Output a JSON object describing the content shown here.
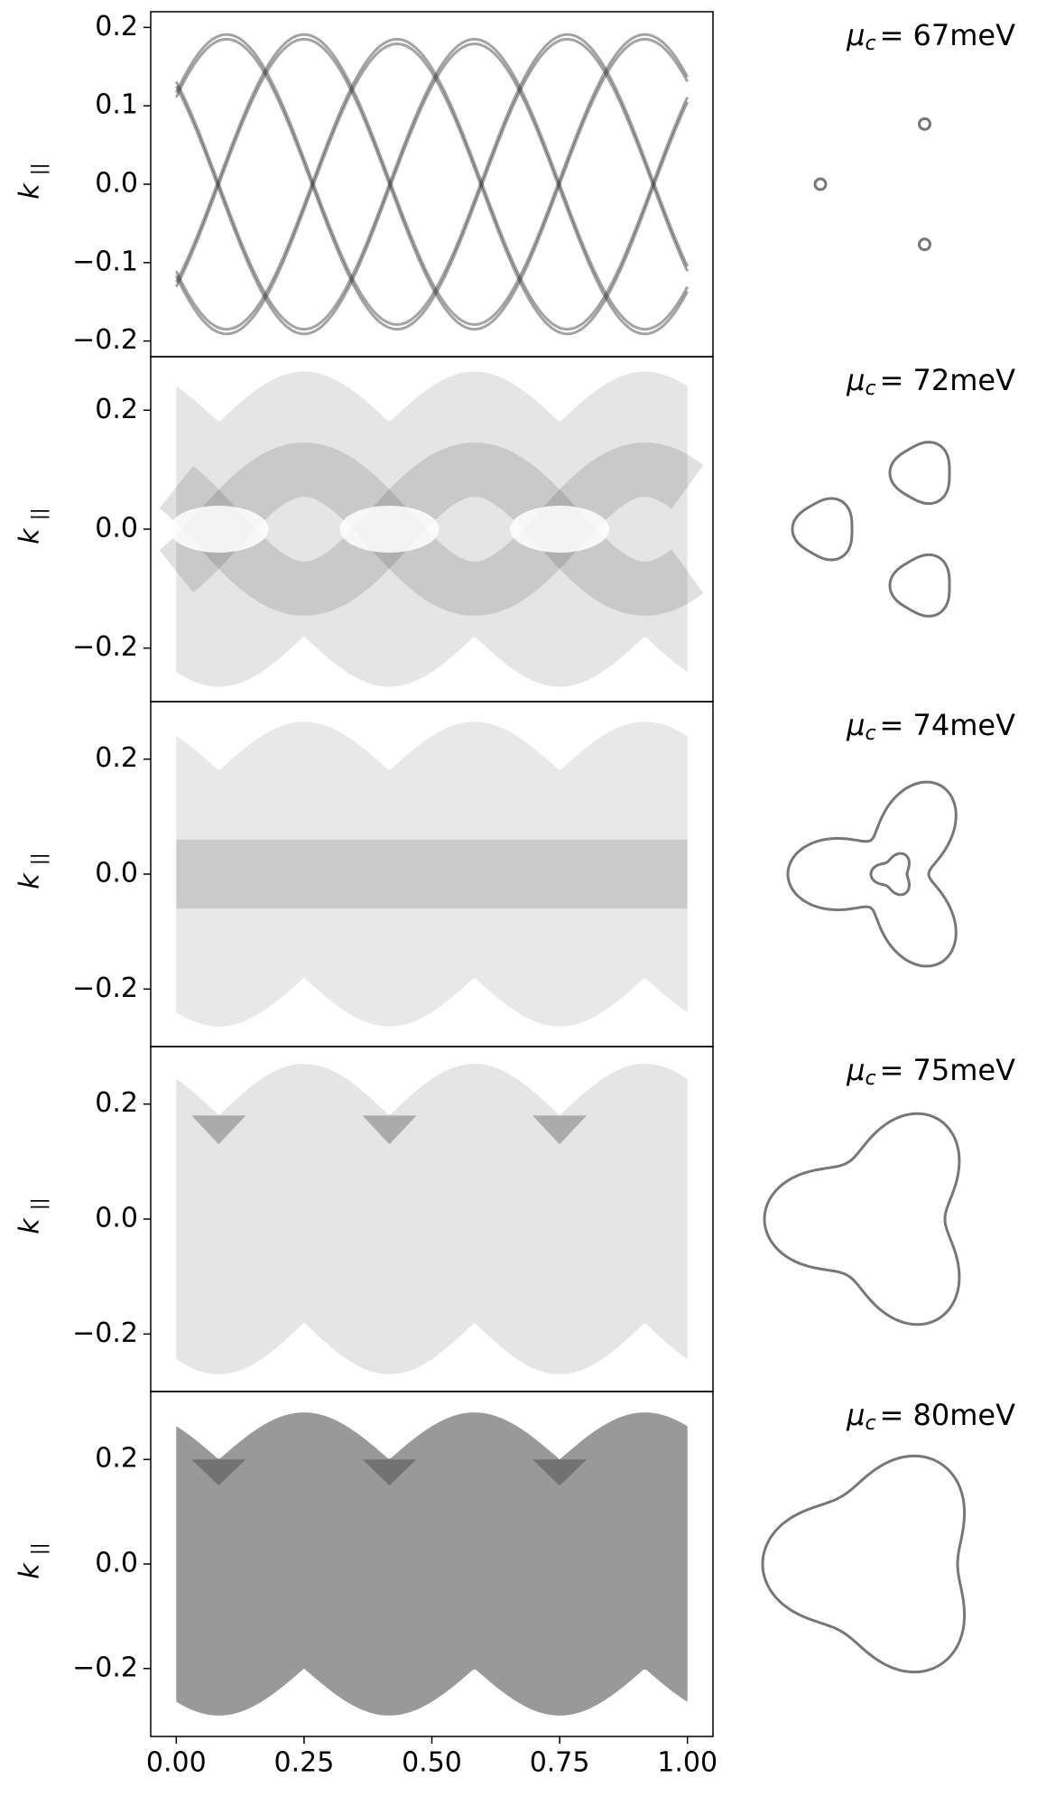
{
  "chart_data": [
    {
      "type": "density",
      "ylabel": "k",
      "ylabel_subscript": "||",
      "annotation_symbol": "μ",
      "annotation_subscript": "c",
      "annotation": "= 67meV",
      "xlim": [
        -0.05,
        1.05
      ],
      "ylim": [
        -0.22,
        0.22
      ],
      "yticks": [
        0.2,
        0.1,
        {
          "value": 0,
          "label": "0.0"
        },
        {
          "value": -0.1,
          "label": "−0.1"
        },
        {
          "value": -0.2,
          "label": "−0.2"
        }
      ]
    },
    {
      "type": "density",
      "ylabel": "k",
      "ylabel_subscript": "||",
      "annotation_symbol": "μ",
      "annotation_subscript": "c",
      "annotation": "= 72meV",
      "xlim": [
        -0.05,
        1.05
      ],
      "ylim": [
        -0.29,
        0.29
      ],
      "yticks": [
        0.2,
        {
          "value": 0,
          "label": "0.0"
        },
        {
          "value": -0.2,
          "label": "−0.2"
        }
      ]
    },
    {
      "type": "density",
      "ylabel": "k",
      "ylabel_subscript": "||",
      "annotation_symbol": "μ",
      "annotation_subscript": "c",
      "annotation": "= 74meV",
      "xlim": [
        -0.05,
        1.05
      ],
      "ylim": [
        -0.3,
        0.3
      ],
      "yticks": [
        0.2,
        {
          "value": 0,
          "label": "0.0"
        },
        {
          "value": -0.2,
          "label": "−0.2"
        }
      ]
    },
    {
      "type": "density",
      "ylabel": "k",
      "ylabel_subscript": "||",
      "annotation_symbol": "μ",
      "annotation_subscript": "c",
      "annotation": "= 75meV",
      "xlim": [
        -0.05,
        1.05
      ],
      "ylim": [
        -0.3,
        0.3
      ],
      "yticks": [
        0.2,
        {
          "value": 0,
          "label": "0.0"
        },
        {
          "value": -0.2,
          "label": "−0.2"
        }
      ]
    },
    {
      "type": "density",
      "ylabel": "k",
      "ylabel_subscript": "||",
      "annotation_symbol": "μ",
      "annotation_subscript": "c",
      "annotation": "= 80meV",
      "xlim": [
        -0.05,
        1.05
      ],
      "ylim": [
        -0.33,
        0.33
      ],
      "yticks": [
        0.2,
        {
          "value": 0,
          "label": "0.0"
        },
        {
          "value": -0.2,
          "label": "−0.2"
        }
      ],
      "xticks": [
        {
          "value": 0,
          "label": "0.00"
        },
        {
          "value": 0.25,
          "label": "0.25"
        },
        {
          "value": 0.5,
          "label": "0.50"
        },
        {
          "value": 0.75,
          "label": "0.75"
        },
        {
          "value": 1,
          "label": "1.00"
        }
      ]
    }
  ]
}
